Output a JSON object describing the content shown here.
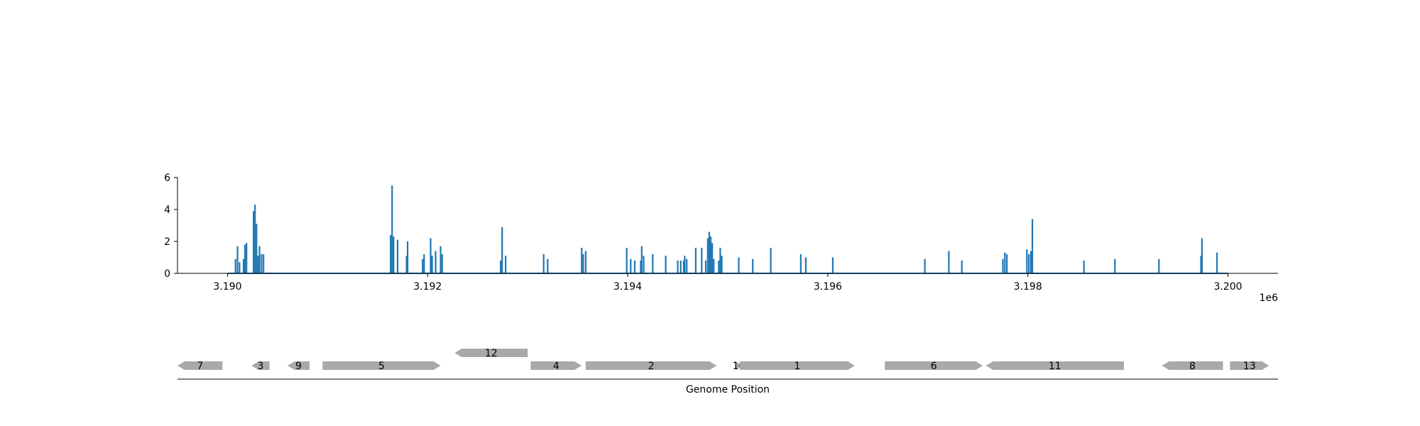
{
  "chart_data": [
    {
      "type": "bar",
      "title": "",
      "xlabel": "",
      "ylabel": "",
      "x_offset_label": "1e6",
      "xlim": [
        3189500,
        3200500
      ],
      "ylim": [
        0,
        6
      ],
      "x_ticks": [
        3190000,
        3192000,
        3194000,
        3196000,
        3198000,
        3200000
      ],
      "x_tick_labels": [
        "3.190",
        "3.192",
        "3.194",
        "3.196",
        "3.198",
        "3.200"
      ],
      "y_ticks": [
        0,
        2,
        4,
        6
      ],
      "y_tick_labels": [
        "0",
        "2",
        "4",
        "6"
      ],
      "color": "#1f77b4",
      "grid": false,
      "points": [
        {
          "x": 3190080,
          "y": 0.9
        },
        {
          "x": 3190100,
          "y": 1.7
        },
        {
          "x": 3190120,
          "y": 0.7
        },
        {
          "x": 3190160,
          "y": 0.9
        },
        {
          "x": 3190175,
          "y": 1.8
        },
        {
          "x": 3190190,
          "y": 1.9
        },
        {
          "x": 3190260,
          "y": 3.9
        },
        {
          "x": 3190275,
          "y": 4.3
        },
        {
          "x": 3190290,
          "y": 3.1
        },
        {
          "x": 3190305,
          "y": 1.1
        },
        {
          "x": 3190320,
          "y": 1.7
        },
        {
          "x": 3190340,
          "y": 1.2
        },
        {
          "x": 3190360,
          "y": 1.2
        },
        {
          "x": 3191630,
          "y": 2.4
        },
        {
          "x": 3191645,
          "y": 5.5
        },
        {
          "x": 3191660,
          "y": 2.3
        },
        {
          "x": 3191700,
          "y": 2.1
        },
        {
          "x": 3191790,
          "y": 1.1
        },
        {
          "x": 3191800,
          "y": 2.0
        },
        {
          "x": 3191950,
          "y": 0.9
        },
        {
          "x": 3191965,
          "y": 1.2
        },
        {
          "x": 3192030,
          "y": 2.2
        },
        {
          "x": 3192045,
          "y": 1.1
        },
        {
          "x": 3192080,
          "y": 1.4
        },
        {
          "x": 3192130,
          "y": 1.7
        },
        {
          "x": 3192145,
          "y": 1.2
        },
        {
          "x": 3192730,
          "y": 0.8
        },
        {
          "x": 3192745,
          "y": 2.9
        },
        {
          "x": 3192780,
          "y": 1.1
        },
        {
          "x": 3193160,
          "y": 1.2
        },
        {
          "x": 3193200,
          "y": 0.9
        },
        {
          "x": 3193540,
          "y": 1.6
        },
        {
          "x": 3193555,
          "y": 1.2
        },
        {
          "x": 3193580,
          "y": 1.4
        },
        {
          "x": 3193990,
          "y": 1.6
        },
        {
          "x": 3194030,
          "y": 0.9
        },
        {
          "x": 3194070,
          "y": 0.8
        },
        {
          "x": 3194130,
          "y": 0.8
        },
        {
          "x": 3194140,
          "y": 1.7
        },
        {
          "x": 3194160,
          "y": 1.1
        },
        {
          "x": 3194250,
          "y": 1.2
        },
        {
          "x": 3194380,
          "y": 1.1
        },
        {
          "x": 3194500,
          "y": 0.8
        },
        {
          "x": 3194530,
          "y": 0.8
        },
        {
          "x": 3194560,
          "y": 0.8
        },
        {
          "x": 3194570,
          "y": 1.1
        },
        {
          "x": 3194590,
          "y": 0.9
        },
        {
          "x": 3194680,
          "y": 1.6
        },
        {
          "x": 3194740,
          "y": 1.6
        },
        {
          "x": 3194780,
          "y": 0.8
        },
        {
          "x": 3194800,
          "y": 2.2
        },
        {
          "x": 3194815,
          "y": 2.6
        },
        {
          "x": 3194830,
          "y": 2.3
        },
        {
          "x": 3194845,
          "y": 1.9
        },
        {
          "x": 3194860,
          "y": 0.9
        },
        {
          "x": 3194910,
          "y": 0.8
        },
        {
          "x": 3194925,
          "y": 1.6
        },
        {
          "x": 3194940,
          "y": 1.1
        },
        {
          "x": 3195110,
          "y": 1.0
        },
        {
          "x": 3195250,
          "y": 0.9
        },
        {
          "x": 3195430,
          "y": 1.6
        },
        {
          "x": 3195730,
          "y": 1.2
        },
        {
          "x": 3195780,
          "y": 1.0
        },
        {
          "x": 3196050,
          "y": 1.0
        },
        {
          "x": 3196970,
          "y": 0.9
        },
        {
          "x": 3197210,
          "y": 1.4
        },
        {
          "x": 3197340,
          "y": 0.8
        },
        {
          "x": 3197750,
          "y": 0.9
        },
        {
          "x": 3197770,
          "y": 1.3
        },
        {
          "x": 3197790,
          "y": 1.2
        },
        {
          "x": 3197990,
          "y": 1.5
        },
        {
          "x": 3198010,
          "y": 1.2
        },
        {
          "x": 3198030,
          "y": 1.4
        },
        {
          "x": 3198045,
          "y": 3.4
        },
        {
          "x": 3198560,
          "y": 0.8
        },
        {
          "x": 3198870,
          "y": 0.9
        },
        {
          "x": 3199310,
          "y": 0.9
        },
        {
          "x": 3199730,
          "y": 1.1
        },
        {
          "x": 3199740,
          "y": 2.2
        },
        {
          "x": 3199890,
          "y": 1.3
        }
      ]
    },
    {
      "type": "gene-track",
      "xlabel": "Genome Position",
      "genes": [
        {
          "label": "7",
          "start": 3189500,
          "end": 3189950,
          "strand": "-",
          "row": 0
        },
        {
          "label": "3",
          "start": 3190240,
          "end": 3190420,
          "strand": "-",
          "row": 0
        },
        {
          "label": "9",
          "start": 3190600,
          "end": 3190820,
          "strand": "-",
          "row": 0
        },
        {
          "label": "5",
          "start": 3190950,
          "end": 3192130,
          "strand": "+",
          "row": 0
        },
        {
          "label": "12",
          "start": 3192270,
          "end": 3193000,
          "strand": "-",
          "row": 1
        },
        {
          "label": "4",
          "start": 3193030,
          "end": 3193540,
          "strand": "+",
          "row": 0
        },
        {
          "label": "2",
          "start": 3193580,
          "end": 3194890,
          "strand": "+",
          "row": 0
        },
        {
          "label": "10",
          "start": 3195080,
          "end": 3195140,
          "strand": "+",
          "row": 0
        },
        {
          "label": "1",
          "start": 3195120,
          "end": 3196270,
          "strand": "+",
          "row": 0
        },
        {
          "label": "6",
          "start": 3196570,
          "end": 3197550,
          "strand": "+",
          "row": 0
        },
        {
          "label": "11",
          "start": 3197580,
          "end": 3198960,
          "strand": "-",
          "row": 0
        },
        {
          "label": "8",
          "start": 3199340,
          "end": 3199950,
          "strand": "-",
          "row": 0
        },
        {
          "label": "13",
          "start": 3200020,
          "end": 3200410,
          "strand": "+",
          "row": 0
        }
      ],
      "color": "#a9a9a9"
    }
  ]
}
